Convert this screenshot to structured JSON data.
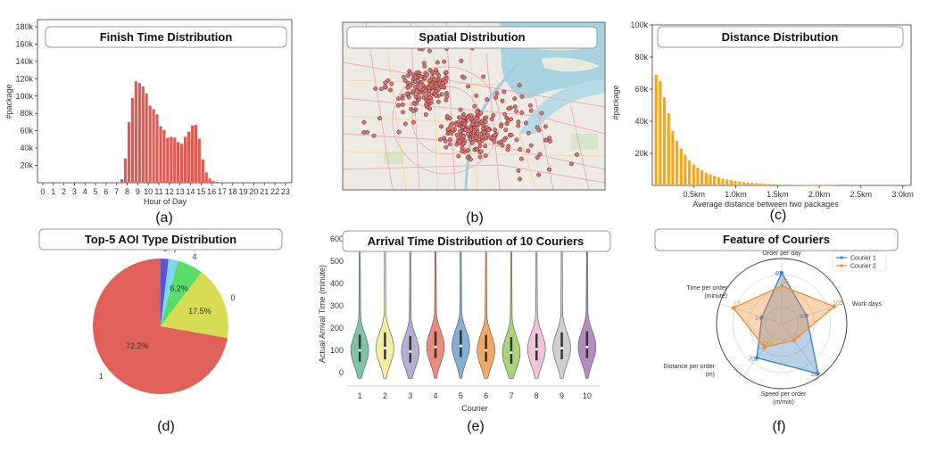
{
  "captions": [
    "(a)",
    "(b)",
    "(c)",
    "(d)",
    "(e)",
    "(f)"
  ],
  "colors": {
    "bar_red": "#e05a54",
    "bar_orange": "#f4a71d",
    "pie": [
      "#e0605a",
      "#d8dc54",
      "#58dd6a",
      "#7fd8f0",
      "#5a55d8"
    ],
    "violins": [
      "#7cc6a7",
      "#f3efa3",
      "#b7aed6",
      "#ec8a7d",
      "#86aed0",
      "#f0a868",
      "#a8d47a",
      "#f3c3d9",
      "#cfcfcf",
      "#b689c0"
    ],
    "radar": [
      "#3a7ebd",
      "#f08a2c"
    ]
  },
  "map": {
    "title": "Spatial Distribution"
  },
  "chart_data": [
    {
      "id": "a",
      "type": "bar",
      "title": "Finish Time Distribution",
      "xlabel": "Hour of Day",
      "ylabel": "#package",
      "ylim": [
        0,
        180000
      ],
      "yticks": [
        "20k",
        "40k",
        "60k",
        "80k",
        "100k",
        "120k",
        "140k",
        "160k",
        "180k"
      ],
      "xticks": [
        "0",
        "1",
        "2",
        "3",
        "4",
        "5",
        "6",
        "7",
        "8",
        "9",
        "10",
        "11",
        "12",
        "13",
        "14",
        "15",
        "16",
        "17",
        "18",
        "19",
        "20",
        "21",
        "22",
        "23"
      ],
      "x": [
        7.5,
        7.83,
        8.17,
        8.5,
        8.83,
        9.17,
        9.5,
        9.83,
        10.17,
        10.5,
        10.83,
        11.17,
        11.5,
        11.83,
        12.17,
        12.5,
        12.83,
        13.17,
        13.5,
        13.83,
        14.17,
        14.5,
        14.83,
        15.17,
        15.5,
        15.83,
        16.17,
        16.5,
        16.83,
        17.17,
        17.5,
        17.83,
        18.17,
        18.5,
        18.83,
        19.17,
        19.5
      ],
      "values": [
        4000,
        28000,
        70000,
        98000,
        117000,
        115000,
        111000,
        103000,
        89000,
        85000,
        79000,
        65000,
        61000,
        52000,
        53000,
        52000,
        47000,
        45000,
        53000,
        59000,
        66000,
        67000,
        51000,
        27000,
        12000,
        5000,
        2000,
        1000,
        0,
        0,
        0,
        0,
        0,
        0,
        0,
        0,
        0
      ]
    },
    {
      "id": "c",
      "type": "bar",
      "title": "Distance Distribution",
      "xlabel": "Average distance between two packages",
      "ylabel": "#package",
      "ylim": [
        0,
        100000
      ],
      "yticks": [
        "20k",
        "40k",
        "60k",
        "80k",
        "100k"
      ],
      "xticks": [
        "0.5km",
        "1.0km",
        "1.5km",
        "2.0km",
        "2.5km",
        "3.0km"
      ],
      "bin_width_km": 0.05,
      "values": [
        69000,
        65000,
        55000,
        45000,
        34000,
        28000,
        23000,
        19000,
        15500,
        13000,
        11000,
        9500,
        8000,
        7000,
        6000,
        5000,
        4300,
        3700,
        3200,
        2800,
        2400,
        2100,
        1800,
        1600,
        1400,
        1200,
        1050,
        900,
        800,
        700,
        600,
        520,
        450,
        400,
        350,
        300,
        260,
        220,
        190,
        160,
        140,
        120,
        100
      ]
    },
    {
      "id": "d",
      "type": "pie",
      "title": "Top-5 AOI Type Distribution",
      "labels": [
        "1",
        "0",
        "4",
        "7",
        "6"
      ],
      "values": [
        72.2,
        17.5,
        6.2,
        2.2,
        1.9
      ],
      "pct_labels": [
        "72.2%",
        "17.5%",
        "6.2%",
        "",
        ""
      ]
    },
    {
      "id": "e",
      "type": "violin",
      "title": "Arrival Time Distribution of 10 Couriers",
      "xlabel": "Courier",
      "ylabel": "Actual Arrival Time (minute)",
      "ylim": [
        -60,
        600
      ],
      "yticks": [
        "0",
        "100",
        "200",
        "300",
        "400",
        "500",
        "600"
      ],
      "categories": [
        "1",
        "2",
        "3",
        "4",
        "5",
        "6",
        "7",
        "8",
        "9",
        "10"
      ],
      "medians": [
        100,
        110,
        95,
        115,
        120,
        100,
        90,
        105,
        110,
        115
      ]
    },
    {
      "id": "f",
      "type": "radar",
      "title": "Feature of Couriers",
      "axes": [
        "Order per day",
        "Work days",
        "Speed per order\n(m/min)",
        "Distance per order\n(m)",
        "Time per order\n(minute)"
      ],
      "series": [
        {
          "name": "Courier 1",
          "normalized": [
            0.78,
            0.4,
            0.95,
            0.65,
            0.32
          ]
        },
        {
          "name": "Courier 2",
          "normalized": [
            0.58,
            0.85,
            0.32,
            0.45,
            0.78
          ]
        }
      ],
      "value_labels": [
        [
          "40",
          "93",
          "50",
          "702",
          "14"
        ],
        [
          "36",
          "105",
          "35",
          "612",
          "17"
        ]
      ]
    }
  ]
}
